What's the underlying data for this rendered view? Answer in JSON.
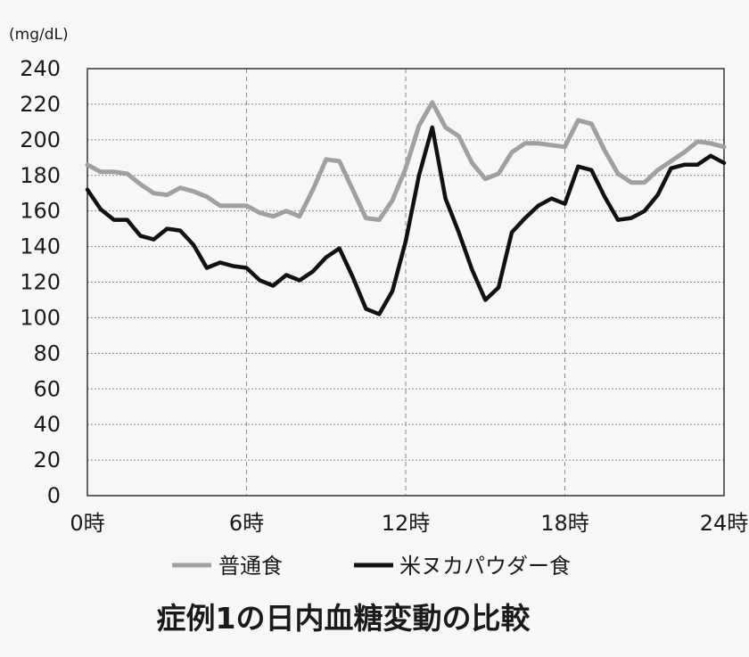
{
  "chart_data": {
    "type": "line",
    "title": "症例1の日内血糖変動の比較",
    "ylabel": "(mg/dL)",
    "xlabel": "",
    "ylim": [
      0,
      240
    ],
    "yticks": [
      0,
      20,
      40,
      60,
      80,
      100,
      120,
      140,
      160,
      180,
      200,
      220,
      240
    ],
    "xlim": [
      0,
      24
    ],
    "xticks": [
      0,
      6,
      12,
      18,
      24
    ],
    "xtick_labels": [
      "0時",
      "6時",
      "12時",
      "18時",
      "24時"
    ],
    "grid": {
      "horizontal": "dotted",
      "vertical": "dashed at 6, 12, 18"
    },
    "legend_position": "bottom",
    "series": [
      {
        "name": "普通食",
        "color": "#a0a0a0",
        "x": [
          0,
          0.5,
          1,
          1.5,
          2,
          2.5,
          3,
          3.5,
          4,
          4.5,
          5,
          5.5,
          6,
          6.5,
          7,
          7.5,
          8,
          8.5,
          9,
          9.5,
          10,
          10.5,
          11,
          11.5,
          12,
          12.5,
          13,
          13.5,
          14,
          14.5,
          15,
          15.5,
          16,
          16.5,
          17,
          17.5,
          18,
          18.5,
          19,
          19.5,
          20,
          20.5,
          21,
          21.5,
          22,
          22.5,
          23,
          23.5,
          24
        ],
        "values": [
          186,
          182,
          182,
          181,
          175,
          170,
          169,
          173,
          171,
          168,
          163,
          163,
          163,
          159,
          157,
          160,
          157,
          172,
          189,
          188,
          172,
          156,
          155,
          166,
          184,
          208,
          221,
          207,
          202,
          187,
          178,
          181,
          193,
          198,
          198,
          197,
          196,
          211,
          209,
          194,
          181,
          176,
          176,
          183,
          188,
          193,
          199,
          198,
          196
        ]
      },
      {
        "name": "米ヌカパウダー食",
        "color": "#111111",
        "x": [
          0,
          0.5,
          1,
          1.5,
          2,
          2.5,
          3,
          3.5,
          4,
          4.5,
          5,
          5.5,
          6,
          6.5,
          7,
          7.5,
          8,
          8.5,
          9,
          9.5,
          10,
          10.5,
          11,
          11.5,
          12,
          12.5,
          13,
          13.5,
          14,
          14.5,
          15,
          15.5,
          16,
          16.5,
          17,
          17.5,
          18,
          18.5,
          19,
          19.5,
          20,
          20.5,
          21,
          21.5,
          22,
          22.5,
          23,
          23.5,
          24
        ],
        "values": [
          172,
          161,
          155,
          155,
          146,
          144,
          150,
          149,
          141,
          128,
          131,
          129,
          128,
          121,
          118,
          124,
          121,
          126,
          134,
          139,
          123,
          105,
          102,
          115,
          143,
          180,
          207,
          167,
          148,
          127,
          110,
          117,
          148,
          156,
          163,
          167,
          164,
          185,
          183,
          168,
          155,
          156,
          160,
          169,
          184,
          186,
          186,
          191,
          187
        ]
      }
    ]
  }
}
